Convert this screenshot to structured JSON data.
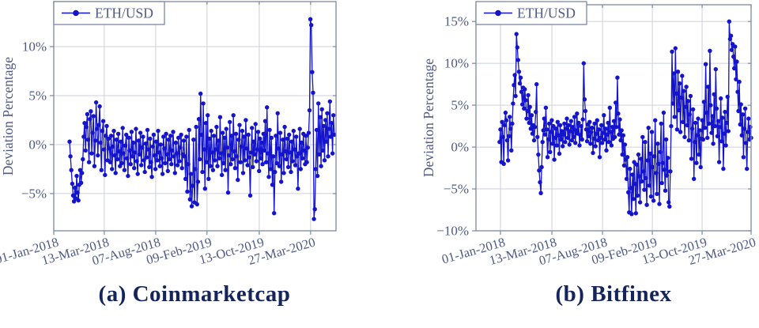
{
  "colors": {
    "series_blue": "#1414cd",
    "axis_text": "#4e5a85",
    "caption_text": "#15255c",
    "grid_line": "#ccd0db",
    "axis_border": "#7d87a6",
    "legend_fill": "#ffffff"
  },
  "chart_data": [
    {
      "type": "scatter",
      "caption": "(a) Coinmarketcap",
      "legend": [
        {
          "label": "ETH/USD"
        }
      ],
      "legend_position": "top-left",
      "ylabel": "Deviation Percentage",
      "xlabel": "",
      "grid": true,
      "ylim": [
        -8.8,
        14.6
      ],
      "ytick_values": [
        10,
        5,
        0,
        -5
      ],
      "ytick_labels": [
        "10%",
        "5%",
        "0%",
        "−5%"
      ],
      "xtick_labels": [
        "01-Jan-2018",
        "13-Mar-2018",
        "07-Aug-2018",
        "09-Feb-2019",
        "13-Oct-2019",
        "27-Mar-2020"
      ],
      "xtick_pos": [
        0,
        0.179,
        0.361,
        0.543,
        0.728,
        0.91
      ],
      "series": [
        {
          "name": "ETH/USD",
          "x_start": 0.056,
          "x_end": 0.994,
          "values": [
            0.3,
            -1.2,
            -2.6,
            -4,
            -5.2,
            -5.8,
            -4.4,
            -5.5,
            -3.2,
            -4.9,
            -5.7,
            -4.1,
            -2.6,
            -3.9,
            -2.9,
            -1.5,
            0.8,
            2.2,
            -0.6,
            1.8,
            3.1,
            0.5,
            -1.8,
            2.6,
            3.4,
            -0.9,
            1.2,
            2.9,
            -2.2,
            0.4,
            4.3,
            1.6,
            -1.1,
            2,
            3.9,
            0.2,
            -2.6,
            1.4,
            2.4,
            -0.5,
            -3.1,
            0.9,
            1.9,
            -1.6,
            0.6,
            -0.4,
            -1.8,
            0.9,
            -2.5,
            -0.2,
            1.4,
            -1.1,
            -2.9,
            0.5,
            -1.5,
            1.1,
            -0.7,
            -2.2,
            0.3,
            -1.9,
            1.7,
            -0.9,
            -2.6,
            -0.1,
            1,
            -1.4,
            -3.2,
            0.7,
            -0.6,
            -2,
            1.3,
            -1.2,
            0.2,
            -2.4,
            -0.8,
            1.6,
            -1.7,
            -3,
            0.4,
            -1,
            1.2,
            -2.1,
            -0.3,
            0.8,
            -1.6,
            -2.8,
            0.1,
            -1.3,
            1.5,
            -0.5,
            -2.3,
            0.6,
            -1.8,
            -3.3,
            -0.2,
            1,
            -1.1,
            -2.5,
            0.3,
            -1.6,
            1.4,
            -0.8,
            -2.2,
            0,
            -1.4,
            -3,
            0.8,
            -0.4,
            -1.9,
            1.1,
            -1,
            -2.7,
            0.5,
            -1.5,
            0.9,
            -2,
            -0.6,
            1.3,
            -1.2,
            -2.9,
            0.2,
            -0.9,
            -2.1,
            0.7,
            -1.7,
            -0.3,
            1,
            -2.4,
            -1,
            0.4,
            -1.2,
            -3.5,
            0.8,
            -4.8,
            -2,
            1.5,
            -5.6,
            -3,
            -6.3,
            -4.2,
            0.5,
            -5.9,
            -2.5,
            1.8,
            -6.1,
            -3.8,
            2.6,
            -1.5,
            5.2,
            1,
            -2.8,
            4.2,
            -0.5,
            -4.5,
            2.2,
            -1.8,
            3,
            -3.5,
            0.6,
            -2.2,
            1.4,
            -0.8,
            -2.6,
            0.9,
            -1.6,
            -0.5,
            1.8,
            -2.2,
            0.4,
            -1.4,
            2.8,
            -0.9,
            -3.1,
            1.2,
            -1.9,
            0.7,
            -2.6,
            1.6,
            -0.3,
            -4.9,
            -1.1,
            2.3,
            -2,
            0.9,
            -1.5,
            3,
            -0.7,
            -2.4,
            1.1,
            -1.2,
            -3.6,
            0.5,
            2,
            -1.8,
            -0.2,
            1.4,
            -2.9,
            0.8,
            -1.6,
            2.5,
            -0.4,
            -2.1,
            1,
            -1.3,
            -5.2,
            -0.8,
            1.7,
            -2.3,
            0.3,
            -1,
            2.1,
            -1.7,
            -0.5,
            1.3,
            -2.7,
            0.6,
            -1.4,
            0.2,
            -2,
            1.1,
            -0.6,
            2.4,
            -1.8,
            3.8,
            -0.9,
            -3.3,
            1.5,
            -2.5,
            0.7,
            -4.1,
            -1.2,
            -7,
            -2.8,
            0.9,
            -1.9,
            3.2,
            -0.4,
            -2.2,
            1.2,
            -3.8,
            -1,
            0.5,
            -2.9,
            1.8,
            -0.7,
            -1.5,
            0.6,
            -2.3,
            1,
            -0.8,
            -2.8,
            0.3,
            -1.7,
            1.4,
            -0.5,
            -2.1,
            0.8,
            -1.2,
            -4.5,
            -0.9,
            1.6,
            -2.5,
            0.2,
            -1.4,
            1.1,
            -0.6,
            -2,
            0.9,
            -1.8,
            -0.3,
            1.2,
            3.5,
            12.8,
            12.2,
            7.4,
            5.3,
            -7.6,
            -6.6,
            -2.5,
            1.5,
            -3.2,
            4.2,
            -1,
            2.8,
            -2.2,
            3.6,
            -0.6,
            1.9,
            -1.6,
            2.5,
            0.3,
            3.2,
            -1.2,
            1.6,
            4.4,
            0.8,
            2.2,
            -0.9,
            3,
            1
          ]
        }
      ]
    },
    {
      "type": "scatter",
      "caption": "(b) Bitfinex",
      "legend": [
        {
          "label": "ETH/USD"
        }
      ],
      "legend_position": "top-left",
      "ylabel": "Deviation Percentage",
      "xlabel": "",
      "grid": true,
      "ylim": [
        -10,
        17
      ],
      "ytick_values": [
        15,
        10,
        5,
        0,
        -5,
        -10
      ],
      "ytick_labels": [
        "15%",
        "10%",
        "5%",
        "0%",
        "−5%",
        "−10%"
      ],
      "xtick_labels": [
        "01-Jan-2018",
        "13-Mar-2018",
        "07-Aug-2018",
        "09-Feb-2019",
        "13-Oct-2019",
        "27-Mar-2020"
      ],
      "xtick_pos": [
        0.089,
        0.276,
        0.46,
        0.641,
        0.822,
        1.0
      ],
      "series": [
        {
          "name": "ETH/USD",
          "x_start": 0.086,
          "x_end": 1.0,
          "values": [
            0.6,
            2.1,
            -1.8,
            3,
            1.2,
            -2,
            2.6,
            4.1,
            3.2,
            0.8,
            -1.6,
            1.3,
            3.6,
            2.2,
            -0.4,
            2.8,
            5.2,
            7.4,
            8.6,
            6.1,
            13.5,
            11.9,
            10.4,
            9,
            7.6,
            8.3,
            6.6,
            5.1,
            7.1,
            4.6,
            6.9,
            5.6,
            3.4,
            4.3,
            6.2,
            2.9,
            4.8,
            2.2,
            3.8,
            1.6,
            2.6,
            0.8,
            2.4,
            4.2,
            7.5,
            1.2,
            -0.9,
            -2.8,
            -4.2,
            -5.5,
            -2.4,
            0.6,
            2,
            3.4,
            1.5,
            4.7,
            2.1,
            -1.2,
            0.9,
            2.8,
            -0.6,
            1.8,
            3.2,
            0.4,
            2.5,
            -1.5,
            1.1,
            2.2,
            0.2,
            3,
            1.4,
            -0.8,
            2.6,
            0.9,
            1.9,
            0.1,
            1.5,
            2.8,
            0.6,
            2.2,
            3.4,
            1.1,
            2.6,
            0.3,
            1.9,
            3.1,
            0.8,
            2.4,
            1.2,
            3.6,
            0.5,
            2,
            4,
            1.6,
            2.9,
            0.2,
            1.4,
            2.5,
            0.9,
            3.3,
            10,
            5.7,
            4.3,
            2.1,
            0.7,
            2.7,
            1.3,
            3,
            0.4,
            1.8,
            2.3,
            -0.7,
            1,
            2.8,
            0.1,
            1.6,
            3.2,
            0.8,
            2.1,
            -1.2,
            1.1,
            2.6,
            0.5,
            1.7,
            3.8,
            0.9,
            2.2,
            -0.4,
            1.5,
            2.9,
            0.6,
            4.7,
            1.8,
            0.2,
            2.4,
            1,
            3.1,
            1.2,
            5.3,
            2.4,
            8.3,
            4,
            1.5,
            3.3,
            0.8,
            2,
            -0.9,
            1.4,
            -2.2,
            0.3,
            -1.5,
            -3.8,
            -1.2,
            -5.4,
            -7.8,
            -2.6,
            -4.9,
            -8,
            -3.3,
            -6.2,
            -1.8,
            -4.4,
            -7.9,
            -2.1,
            -5.8,
            -0.9,
            -3.5,
            -6.6,
            -1.4,
            -4.1,
            1.2,
            -2.9,
            -5.1,
            0.6,
            -3.7,
            -6.9,
            -1.6,
            2.3,
            -4.6,
            -0.8,
            -5.9,
            1.8,
            -2.4,
            -6.4,
            -1.1,
            3.2,
            -3.1,
            -5.6,
            0.4,
            -2,
            -6.8,
            -0.6,
            2.8,
            -4.3,
            -1.9,
            4.1,
            -2.7,
            -5.2,
            0.9,
            -3.4,
            -1.3,
            -6.6,
            -7.1,
            -2.9,
            2.5,
            11.4,
            5.2,
            8.8,
            3.6,
            11.8,
            6.4,
            2.1,
            9,
            4.4,
            7.6,
            1.8,
            5.9,
            8.5,
            3,
            6.7,
            1.2,
            4.8,
            7.2,
            2.6,
            5.5,
            0.8,
            3.9,
            6.1,
            -1.4,
            2.2,
            4.5,
            -3.8,
            0.6,
            2.9,
            -1.9,
            1.4,
            3.4,
            -0.9,
            2,
            -2.4,
            1,
            3.2,
            0.9,
            5.4,
            2.3,
            9.9,
            4.1,
            1.1,
            7.2,
            2.8,
            11.5,
            5,
            1.7,
            3.7,
            0.4,
            6.3,
            2.5,
            9.3,
            4.6,
            1.3,
            3.1,
            -1.8,
            2.4,
            5.8,
            0.7,
            3.5,
            -2.6,
            1.6,
            4.2,
            0.2,
            2.9,
            6,
            1.9,
            15,
            12.9,
            13.3,
            11.6,
            12.3,
            10.8,
            9.4,
            12,
            8.1,
            10.2,
            6.6,
            4.3,
            7.8,
            2.7,
            5.1,
            1.4,
            3.9,
            -1.2,
            2.2,
            4.6,
            0.5,
            -2.6,
            1.8,
            3.4,
            0.9,
            2.4,
            1.1
          ]
        }
      ]
    }
  ]
}
